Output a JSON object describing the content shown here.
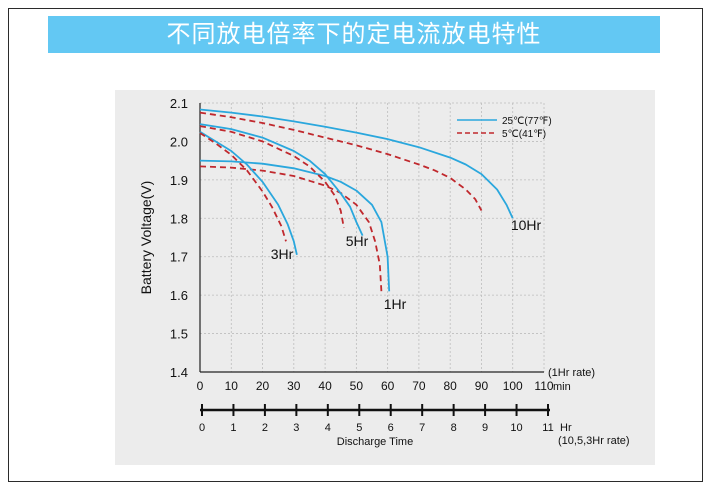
{
  "banner": {
    "title": "不同放电倍率下的定电流放电特性"
  },
  "chart_data": {
    "type": "line",
    "ylabel": "Battery Voltage(V)",
    "xlabel": "Discharge Time",
    "ylim": [
      1.4,
      2.1
    ],
    "y_ticks": [
      "1.4",
      "1.5",
      "1.6",
      "1.7",
      "1.8",
      "1.9",
      "2.0",
      "2.1"
    ],
    "x_axis_min": {
      "range": [
        0,
        110
      ],
      "ticks": [
        "0",
        "10",
        "20",
        "30",
        "40",
        "50",
        "60",
        "70",
        "80",
        "90",
        "100",
        "110"
      ],
      "unit": "min",
      "rate_note": "(1Hr rate)"
    },
    "x_axis_hr": {
      "range": [
        0,
        11
      ],
      "ticks": [
        "0",
        "1",
        "2",
        "3",
        "4",
        "5",
        "6",
        "7",
        "8",
        "9",
        "10",
        "11"
      ],
      "unit": "Hr",
      "rate_note": "(10,5,3Hr rate)"
    },
    "grid": true,
    "legend": {
      "position": "top-right",
      "items": [
        {
          "label": "25℃(77℉)",
          "color": "#2aa7dd",
          "dash": "solid"
        },
        {
          "label": "5℃(41℉)",
          "color": "#c0282d",
          "dash": "dashed"
        }
      ]
    },
    "series": [
      {
        "name": "1Hr",
        "axis": "min",
        "temp": "25℃(77℉)",
        "color": "#2aa7dd",
        "dash": "solid",
        "x": [
          0,
          10,
          20,
          30,
          40,
          45,
          50,
          55,
          58,
          60,
          60.5
        ],
        "y": [
          1.95,
          1.948,
          1.942,
          1.93,
          1.91,
          1.895,
          1.872,
          1.835,
          1.79,
          1.7,
          1.61
        ]
      },
      {
        "name": "1Hr",
        "axis": "min",
        "temp": "5℃(41℉)",
        "color": "#c0282d",
        "dash": "dashed",
        "x": [
          0,
          10,
          20,
          30,
          40,
          45,
          50,
          54,
          56,
          57.5,
          58
        ],
        "y": [
          1.935,
          1.932,
          1.924,
          1.91,
          1.885,
          1.866,
          1.835,
          1.79,
          1.74,
          1.68,
          1.61
        ]
      },
      {
        "name": "3Hr",
        "axis": "hr",
        "temp": "25℃(77℉)",
        "color": "#2aa7dd",
        "dash": "solid",
        "x": [
          0,
          0.5,
          1,
          1.5,
          2,
          2.5,
          2.8,
          3.0,
          3.1
        ],
        "y": [
          2.025,
          2.0,
          1.975,
          1.94,
          1.895,
          1.835,
          1.785,
          1.74,
          1.705
        ]
      },
      {
        "name": "3Hr",
        "axis": "hr",
        "temp": "5℃(41℉)",
        "color": "#c0282d",
        "dash": "dashed",
        "x": [
          0,
          0.5,
          1,
          1.5,
          2,
          2.3,
          2.6,
          2.75
        ],
        "y": [
          2.022,
          1.995,
          1.965,
          1.925,
          1.87,
          1.83,
          1.78,
          1.74
        ]
      },
      {
        "name": "5Hr",
        "axis": "hr",
        "temp": "25℃(77℉)",
        "color": "#2aa7dd",
        "dash": "solid",
        "x": [
          0,
          1,
          2,
          3,
          3.5,
          4,
          4.5,
          4.8,
          5.0,
          5.2
        ],
        "y": [
          2.045,
          2.032,
          2.01,
          1.975,
          1.95,
          1.915,
          1.865,
          1.83,
          1.79,
          1.755
        ]
      },
      {
        "name": "5Hr",
        "axis": "hr",
        "temp": "5℃(41℉)",
        "color": "#c0282d",
        "dash": "dashed",
        "x": [
          0,
          1,
          2,
          3,
          3.5,
          4,
          4.3,
          4.5,
          4.6
        ],
        "y": [
          2.04,
          2.025,
          2.0,
          1.962,
          1.935,
          1.895,
          1.86,
          1.82,
          1.775
        ]
      },
      {
        "name": "10Hr",
        "axis": "hr",
        "temp": "25℃(77℉)",
        "color": "#2aa7dd",
        "dash": "solid",
        "x": [
          0,
          1,
          2,
          3,
          4,
          5,
          6,
          7,
          8,
          8.5,
          9,
          9.5,
          9.8,
          10.0
        ],
        "y": [
          2.083,
          2.075,
          2.065,
          2.052,
          2.038,
          2.023,
          2.006,
          1.985,
          1.958,
          1.94,
          1.915,
          1.875,
          1.835,
          1.8
        ]
      },
      {
        "name": "10Hr",
        "axis": "hr",
        "temp": "5℃(41℉)",
        "color": "#c0282d",
        "dash": "dashed",
        "x": [
          0,
          1,
          2,
          3,
          4,
          5,
          6,
          7,
          7.5,
          8,
          8.5,
          8.8,
          9.0
        ],
        "y": [
          2.075,
          2.063,
          2.048,
          2.03,
          2.01,
          1.99,
          1.967,
          1.94,
          1.925,
          1.905,
          1.875,
          1.85,
          1.82
        ]
      }
    ],
    "annotations": [
      "3Hr",
      "5Hr",
      "1Hr",
      "10Hr"
    ]
  }
}
